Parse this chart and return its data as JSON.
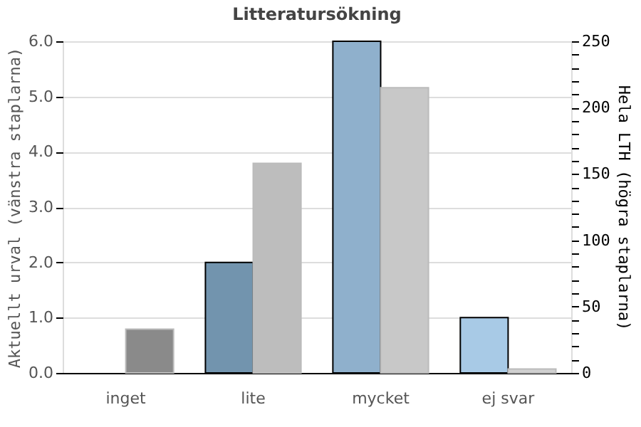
{
  "chart_data": {
    "type": "bar",
    "title": "Litteratursökning",
    "categories": [
      "inget",
      "lite",
      "mycket",
      "ej svar"
    ],
    "ylabel": "Aktuellt urval (vänstra staplarna)",
    "y2label": "Hela LTH (högra staplarna)",
    "series": [
      {
        "colors": [
          null,
          "#7294ae",
          "#8fb0cc",
          "#a8cae6"
        ],
        "values": [
          0,
          2,
          6,
          1
        ],
        "axis": "y"
      },
      {
        "colors": [
          "#8a8a8a",
          "#bdbdbd",
          "#c8c8c8",
          "#d0d0d0"
        ],
        "values": [
          33,
          158,
          215,
          3
        ],
        "axis": "y2"
      }
    ],
    "ylim": [
      0,
      6
    ],
    "yticks": [
      {
        "value": 0,
        "label": "0.0"
      },
      {
        "value": 1,
        "label": "1.0"
      },
      {
        "value": 2,
        "label": "2.0"
      },
      {
        "value": 3,
        "label": "3.0"
      },
      {
        "value": 4,
        "label": "4.0"
      },
      {
        "value": 5,
        "label": "5.0"
      },
      {
        "value": 6,
        "label": "6.0"
      }
    ],
    "y2lim": [
      0,
      250
    ],
    "y2ticks": [
      0,
      {
        "value": 10,
        "label": null
      },
      {
        "value": 20,
        "label": null
      },
      {
        "value": 30,
        "label": null
      },
      {
        "value": 40,
        "label": null
      },
      50,
      {
        "value": 60,
        "label": null
      },
      {
        "value": 70,
        "label": null
      },
      {
        "value": 80,
        "label": null
      },
      {
        "value": 90,
        "label": null
      },
      100,
      {
        "value": 110,
        "label": null
      },
      {
        "value": 120,
        "label": null
      },
      {
        "value": 130,
        "label": null
      },
      {
        "value": 140,
        "label": null
      },
      150,
      {
        "value": 160,
        "label": null
      },
      {
        "value": 170,
        "label": null
      },
      {
        "value": 180,
        "label": null
      },
      {
        "value": 190,
        "label": null
      },
      200,
      {
        "value": 210,
        "label": null
      },
      {
        "value": 220,
        "label": null
      },
      {
        "value": 230,
        "label": null
      },
      {
        "value": 240,
        "label": null
      },
      250
    ],
    "grid": "y"
  }
}
